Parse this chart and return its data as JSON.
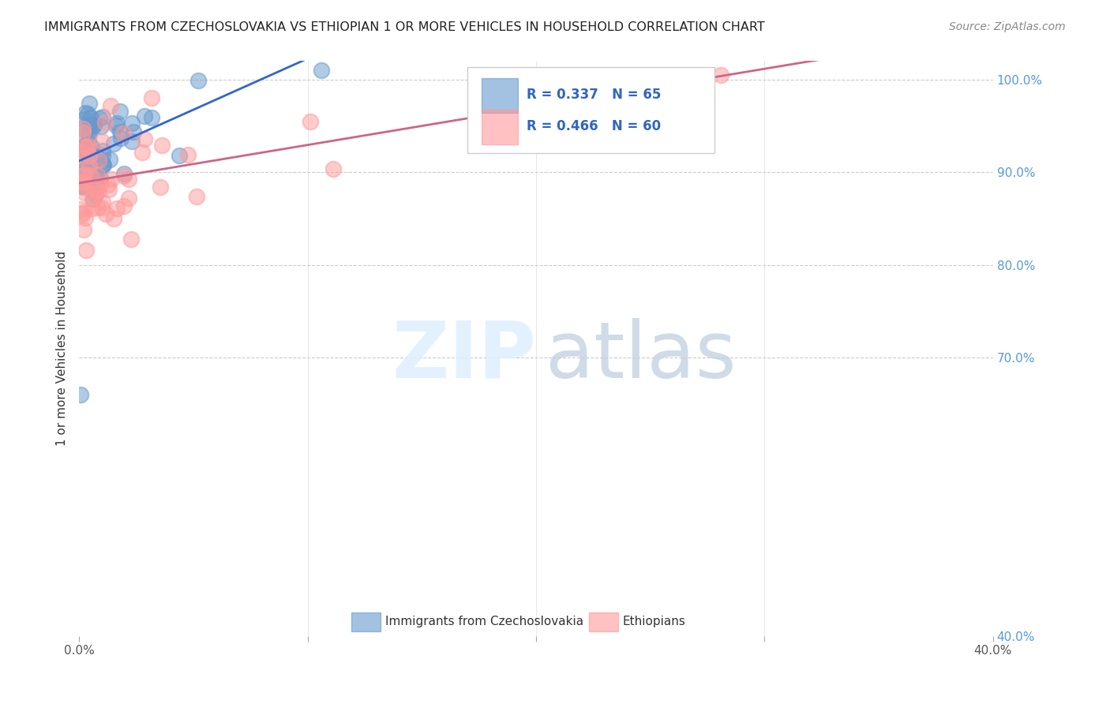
{
  "title": "IMMIGRANTS FROM CZECHOSLOVAKIA VS ETHIOPIAN 1 OR MORE VEHICLES IN HOUSEHOLD CORRELATION CHART",
  "source": "Source: ZipAtlas.com",
  "ylabel": "1 or more Vehicles in Household",
  "xlim": [
    0.0,
    0.4
  ],
  "ylim": [
    0.4,
    1.02
  ],
  "ytick_labels_right": [
    "40.0%",
    "70.0%",
    "80.0%",
    "90.0%",
    "100.0%"
  ],
  "ytick_positions_right": [
    0.4,
    0.7,
    0.8,
    0.9,
    1.0
  ],
  "color_blue": "#6699CC",
  "color_pink": "#FF9999",
  "line_color_blue": "#3366CC",
  "line_color_pink": "#CC6688"
}
